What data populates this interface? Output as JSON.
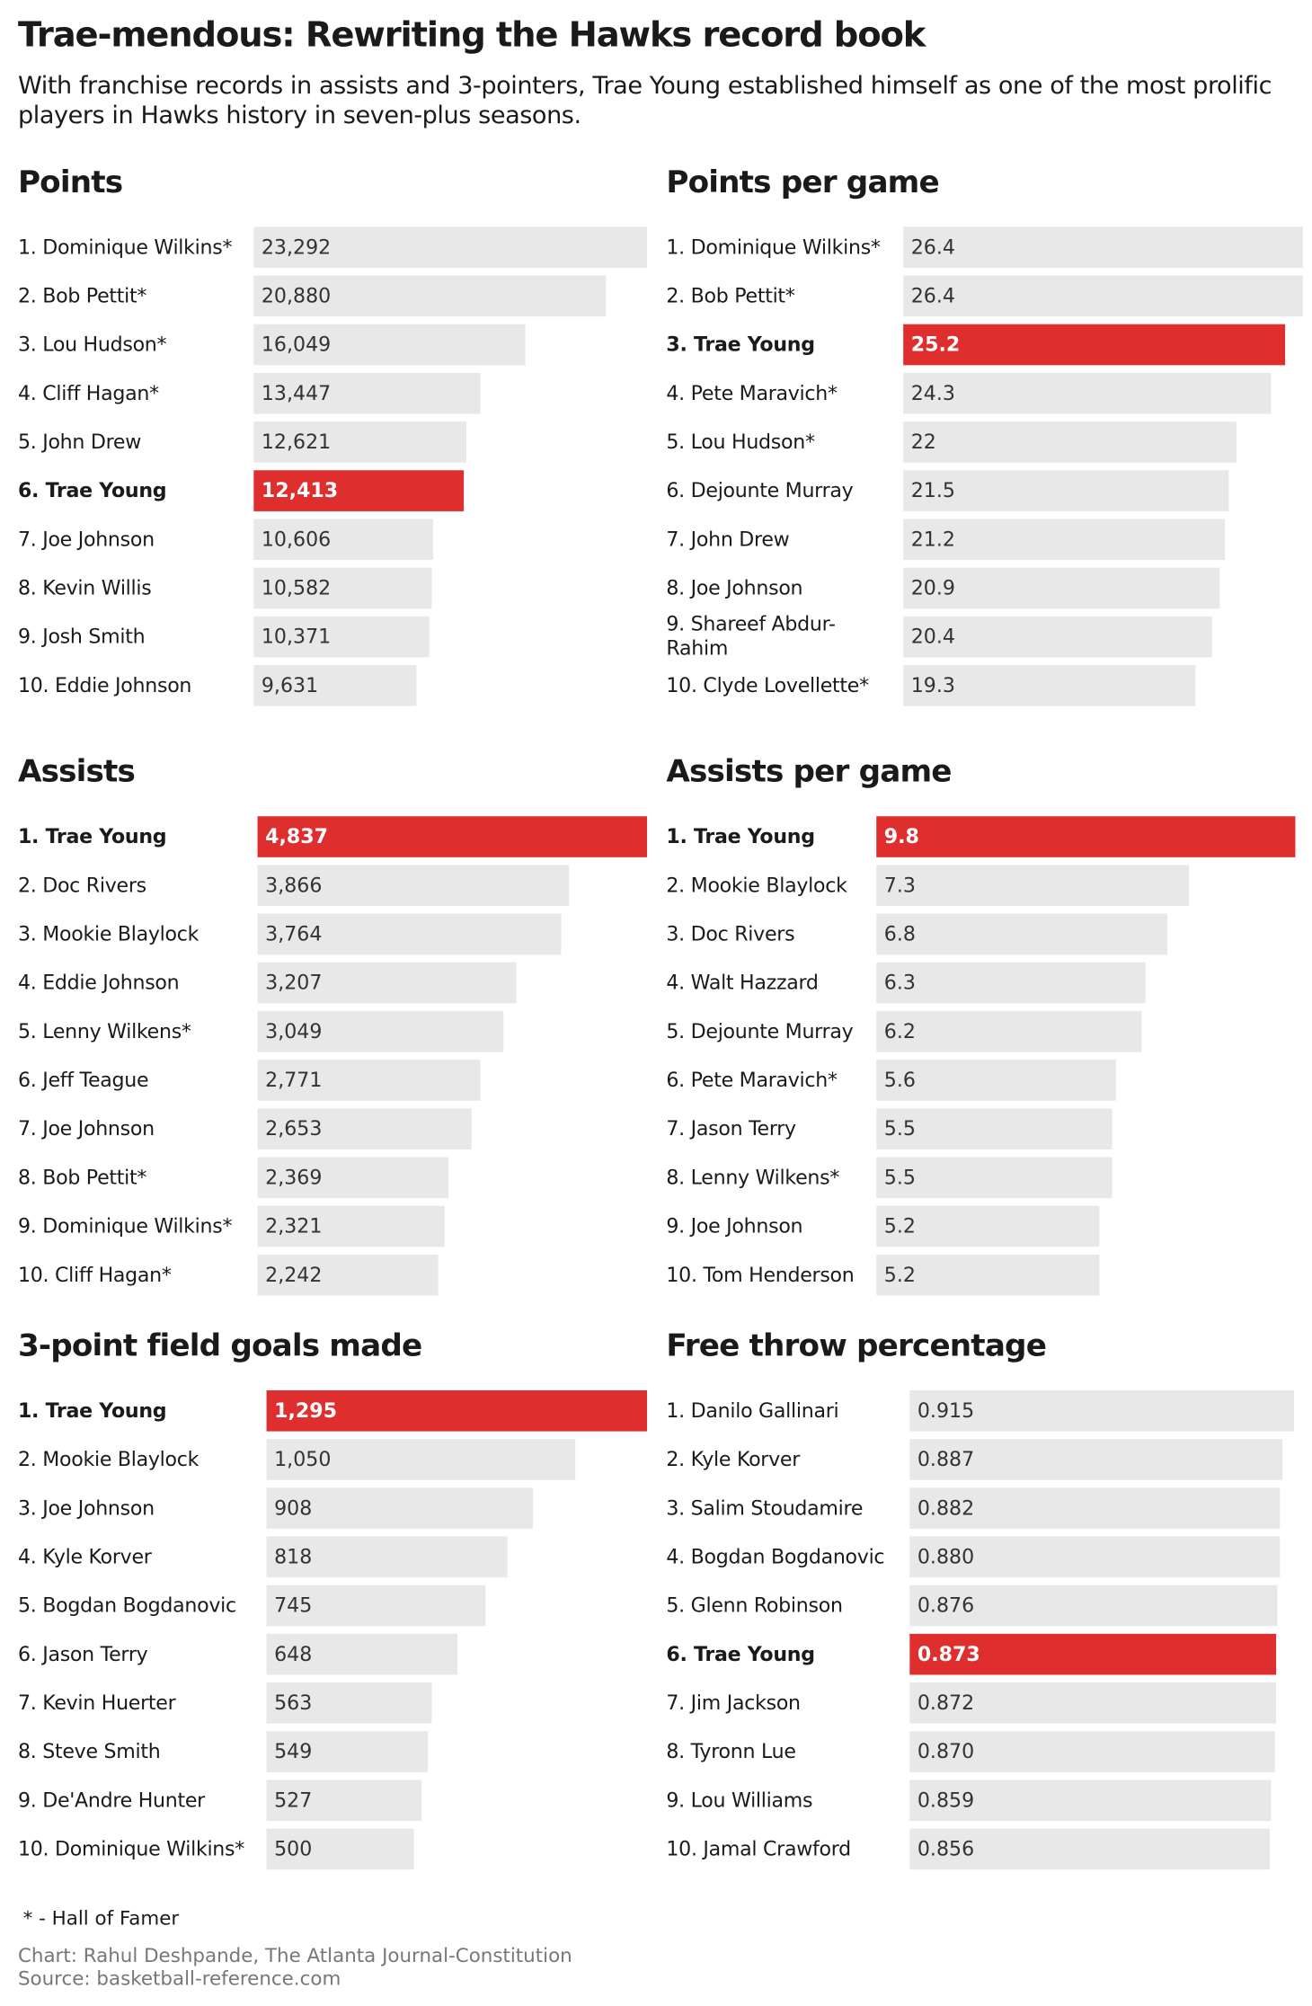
{
  "header": {
    "title": "Trae-mendous: Rewriting the Hawks record book",
    "subtitle": "With franchise records in assists and 3-pointers, Trae Young established himself as one of the most prolific players in Hawks history in seven-plus seasons."
  },
  "chart_data": [
    {
      "type": "bar",
      "orientation": "horizontal",
      "title": "Points",
      "categories": [
        "1. Dominique Wilkins*",
        "2. Bob Pettit*",
        "3. Lou Hudson*",
        "4. Cliff Hagan*",
        "5. John Drew",
        "6. Trae Young",
        "7. Joe Johnson",
        "8. Kevin Willis",
        "9. Josh Smith",
        "10. Eddie Johnson"
      ],
      "values": [
        23292,
        20880,
        16049,
        13447,
        12621,
        12413,
        10606,
        10582,
        10371,
        9631
      ],
      "value_labels": [
        "23,292",
        "20,880",
        "16,049",
        "13,447",
        "12,621",
        "12,413",
        "10,606",
        "10,582",
        "10,371",
        "9,631"
      ],
      "xlim": [
        0,
        23292
      ],
      "color": "#e8e8e8",
      "highlight": {
        "index": 5,
        "color": "#df2e2e"
      }
    },
    {
      "type": "bar",
      "orientation": "horizontal",
      "title": "Points per game",
      "categories": [
        "1. Dominique Wilkins*",
        "2. Bob Pettit*",
        "3. Trae Young",
        "4. Pete Maravich*",
        "5. Lou Hudson*",
        "6. Dejounte Murray",
        "7. John Drew",
        "8. Joe Johnson",
        "9. Shareef Abdur-Rahim",
        "10. Clyde Lovellette*"
      ],
      "values": [
        26.4,
        26.4,
        25.2,
        24.3,
        22,
        21.5,
        21.2,
        20.9,
        20.4,
        19.3
      ],
      "xlim": [
        0,
        26.4
      ],
      "color": "#e8e8e8",
      "highlight": {
        "index": 2,
        "color": "#df2e2e"
      }
    },
    {
      "type": "bar",
      "orientation": "horizontal",
      "title": "Assists",
      "categories": [
        "1. Trae Young",
        "2. Doc Rivers",
        "3. Mookie Blaylock",
        "4. Eddie Johnson",
        "5. Lenny Wilkens*",
        "6. Jeff Teague",
        "7. Joe Johnson",
        "8. Bob Pettit*",
        "9. Dominique Wilkins*",
        "10. Cliff Hagan*"
      ],
      "values": [
        4837,
        3866,
        3764,
        3207,
        3049,
        2771,
        2653,
        2369,
        2321,
        2242
      ],
      "value_labels": [
        "4,837",
        "3,866",
        "3,764",
        "3,207",
        "3,049",
        "2,771",
        "2,653",
        "2,369",
        "2,321",
        "2,242"
      ],
      "xlim": [
        0,
        4837
      ],
      "color": "#e8e8e8",
      "highlight": {
        "index": 0,
        "color": "#df2e2e"
      }
    },
    {
      "type": "bar",
      "orientation": "horizontal",
      "title": "Assists per game",
      "categories": [
        "1. Trae Young",
        "2. Mookie Blaylock",
        "3. Doc Rivers",
        "4. Walt Hazzard",
        "5. Dejounte Murray",
        "6. Pete Maravich*",
        "7. Jason Terry",
        "8. Lenny Wilkens*",
        "9. Joe Johnson",
        "10. Tom Henderson"
      ],
      "values": [
        9.8,
        7.3,
        6.8,
        6.3,
        6.2,
        5.6,
        5.5,
        5.5,
        5.2,
        5.2
      ],
      "xlim": [
        0,
        9.8
      ],
      "color": "#e8e8e8",
      "highlight": {
        "index": 0,
        "color": "#df2e2e"
      }
    },
    {
      "type": "bar",
      "orientation": "horizontal",
      "title": "3-point field goals made",
      "categories": [
        "1. Trae Young",
        "2. Mookie Blaylock",
        "3. Joe Johnson",
        "4. Kyle Korver",
        "5. Bogdan Bogdanovic",
        "6. Jason Terry",
        "7. Kevin Huerter",
        "8. Steve Smith",
        "9. De'Andre Hunter",
        "10. Dominique Wilkins*"
      ],
      "values": [
        1295,
        1050,
        908,
        818,
        745,
        648,
        563,
        549,
        527,
        500
      ],
      "value_labels": [
        "1,295",
        "1,050",
        "908",
        "818",
        "745",
        "648",
        "563",
        "549",
        "527",
        "500"
      ],
      "xlim": [
        0,
        1295
      ],
      "color": "#e8e8e8",
      "highlight": {
        "index": 0,
        "color": "#df2e2e"
      }
    },
    {
      "type": "bar",
      "orientation": "horizontal",
      "title": "Free throw percentage",
      "categories": [
        "1. Danilo Gallinari",
        "2. Kyle Korver",
        "3. Salim Stoudamire",
        "4. Bogdan Bogdanovic",
        "5. Glenn Robinson",
        "6. Trae Young",
        "7. Jim Jackson",
        "8. Tyronn Lue",
        "9. Lou Williams",
        "10. Jamal Crawford"
      ],
      "values": [
        0.915,
        0.887,
        0.882,
        0.88,
        0.876,
        0.873,
        0.872,
        0.87,
        0.859,
        0.856
      ],
      "value_labels": [
        "0.915",
        "0.887",
        "0.882",
        "0.880",
        "0.876",
        "0.873",
        "0.872",
        "0.870",
        "0.859",
        "0.856"
      ],
      "xlim": [
        0,
        0.915
      ],
      "color": "#e8e8e8",
      "highlight": {
        "index": 5,
        "color": "#df2e2e"
      }
    }
  ],
  "footer": {
    "note": "* - Hall of Famer",
    "credit": "Chart: Rahul Deshpande, The Atlanta Journal-Constitution",
    "source": "Source: basketball-reference.com"
  }
}
